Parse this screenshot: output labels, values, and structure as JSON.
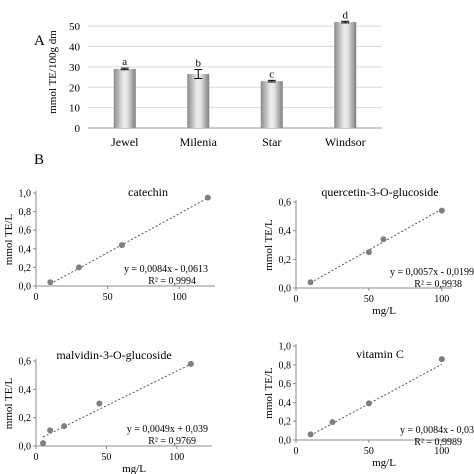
{
  "panel_labels": {
    "a": "A",
    "b": "B"
  },
  "chart_data": [
    {
      "type": "bar",
      "panel": "A",
      "categories": [
        "Jewel",
        "Milenia",
        "Star",
        "Windsor"
      ],
      "values": [
        29,
        26.5,
        23,
        52
      ],
      "errors": [
        0.4,
        2.2,
        0.4,
        0.4
      ],
      "letters": [
        "a",
        "b",
        "c",
        "d"
      ],
      "ylabel": "mmol TE/100g dm",
      "ylim": [
        0,
        55
      ],
      "yticks": [
        0,
        10,
        20,
        30,
        40,
        50
      ],
      "grid": true
    },
    {
      "type": "scatter",
      "title": "catechin",
      "x": [
        10,
        30,
        60,
        120
      ],
      "y": [
        0.04,
        0.2,
        0.44,
        0.95
      ],
      "xlabel": "",
      "ylabel": "mmol TE/L",
      "xlim": [
        0,
        125
      ],
      "ylim": [
        0,
        1.0
      ],
      "xticks": [
        0,
        50,
        100
      ],
      "yticks": [
        0,
        0.2,
        0.4,
        0.6,
        0.8,
        1.0
      ],
      "xtick_labels": [
        "0",
        "50",
        "100"
      ],
      "ytick_labels": [
        "0,0",
        "0,2",
        "0,4",
        "0,6",
        "0,8",
        "1,0"
      ],
      "trend_slope": 0.0084,
      "trend_intercept": -0.0613,
      "equation": "y = 0,0084x - 0,0613",
      "r2": "R² = 0,9994"
    },
    {
      "type": "scatter",
      "title": "quercetin-3-O-glucoside",
      "x": [
        10,
        50,
        60,
        100
      ],
      "y": [
        0.04,
        0.25,
        0.34,
        0.54
      ],
      "xlabel": "mg/L",
      "ylabel": "mmol TE/L",
      "xlim": [
        0,
        107
      ],
      "ylim": [
        0,
        0.6
      ],
      "xticks": [
        0,
        50,
        100
      ],
      "yticks": [
        0,
        0.2,
        0.4,
        0.6
      ],
      "xtick_labels": [
        "0",
        "50",
        "100"
      ],
      "ytick_labels": [
        "0,0",
        "0,2",
        "0,4",
        "0,6"
      ],
      "trend_slope": 0.0057,
      "trend_intercept": -0.0199,
      "equation": "y = 0,0057x - 0,0199",
      "r2": "R² = 0,9938"
    },
    {
      "type": "scatter",
      "title": "malvidin-3-O-glucoside",
      "x": [
        5,
        10,
        20,
        45,
        110
      ],
      "y": [
        0.02,
        0.11,
        0.14,
        0.3,
        0.58
      ],
      "xlabel": "mg/L",
      "ylabel": "mmol TE/L",
      "xlim": [
        0,
        125
      ],
      "ylim": [
        0,
        0.6
      ],
      "xticks": [
        0,
        50,
        100
      ],
      "yticks": [
        0,
        0.2,
        0.4,
        0.6
      ],
      "xtick_labels": [
        "0",
        "50",
        "100"
      ],
      "ytick_labels": [
        "0,0",
        "0,2",
        "0,4",
        "0,6"
      ],
      "trend_slope": 0.0049,
      "trend_intercept": 0.039,
      "equation": "y = 0,0049x + 0,039",
      "r2": "R² = 0,9769"
    },
    {
      "type": "scatter",
      "title": "vitamin C",
      "x": [
        10,
        25,
        50,
        100
      ],
      "y": [
        0.06,
        0.19,
        0.39,
        0.86
      ],
      "xlabel": "mg/L",
      "ylabel": "mmol TE/L",
      "xlim": [
        0,
        107
      ],
      "ylim": [
        0,
        1.0
      ],
      "xticks": [
        0,
        50,
        100
      ],
      "yticks": [
        0,
        0.2,
        0.4,
        0.6,
        0.8,
        1.0
      ],
      "xtick_labels": [
        "0",
        "50",
        "100"
      ],
      "ytick_labels": [
        "0,0",
        "0,2",
        "0,4",
        "0,6",
        "0,8",
        "1,0"
      ],
      "trend_slope": 0.0084,
      "trend_intercept": -0.0339,
      "equation": "y = 0,0084x - 0,03",
      "r2": "R² = 0,9989"
    }
  ]
}
